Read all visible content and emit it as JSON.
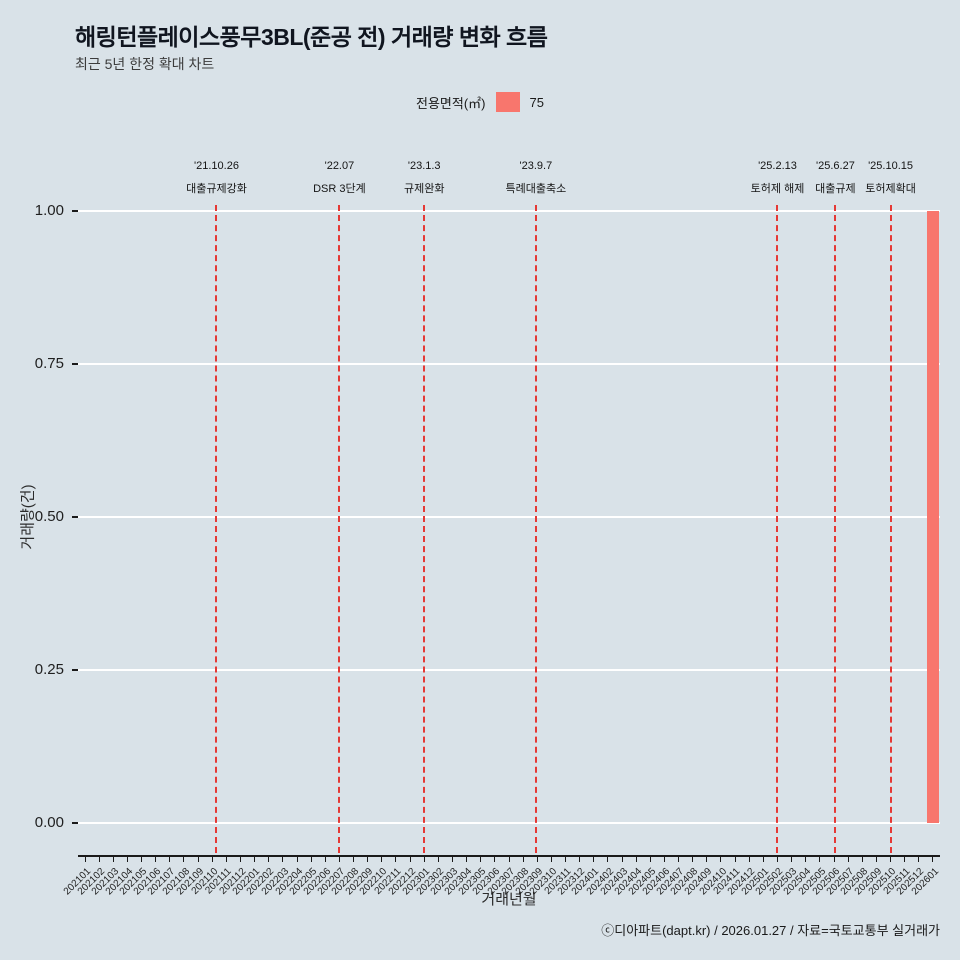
{
  "header": {
    "title": "해링턴플레이스풍무3BL(준공 전) 거래량 변화 흐름",
    "subtitle": "최근 5년 한정 확대 차트"
  },
  "legend": {
    "title": "전용면적(㎡)",
    "value": "75",
    "swatch_color": "#f8766d"
  },
  "footer": {
    "credit": "ⓒ디아파트(dapt.kr) / 2026.01.27 / 자료=국토교통부 실거래가"
  },
  "chart_data": {
    "type": "bar",
    "title": "해링턴플레이스풍무3BL(준공 전) 거래량 변화 흐름",
    "xlabel": "거래년월",
    "ylabel": "거래량(건)",
    "ylim": [
      0,
      1
    ],
    "grid": true,
    "legend_position": "top",
    "yticks": [
      {
        "value": 0.0,
        "label": "0.00"
      },
      {
        "value": 0.25,
        "label": "0.25"
      },
      {
        "value": 0.5,
        "label": "0.50"
      },
      {
        "value": 0.75,
        "label": "0.75"
      },
      {
        "value": 1.0,
        "label": "1.00"
      }
    ],
    "categories": [
      "202101",
      "202102",
      "202103",
      "202104",
      "202105",
      "202106",
      "202107",
      "202108",
      "202109",
      "202110",
      "202111",
      "202112",
      "202201",
      "202202",
      "202203",
      "202204",
      "202205",
      "202206",
      "202207",
      "202208",
      "202209",
      "202210",
      "202211",
      "202212",
      "202301",
      "202302",
      "202303",
      "202304",
      "202305",
      "202306",
      "202307",
      "202308",
      "202309",
      "202310",
      "202311",
      "202312",
      "202401",
      "202402",
      "202403",
      "202404",
      "202405",
      "202406",
      "202407",
      "202408",
      "202409",
      "202410",
      "202411",
      "202412",
      "202501",
      "202502",
      "202503",
      "202504",
      "202505",
      "202506",
      "202507",
      "202508",
      "202509",
      "202510",
      "202511",
      "202512",
      "202601"
    ],
    "series": [
      {
        "name": "75",
        "color": "#f8766d",
        "values": [
          0,
          0,
          0,
          0,
          0,
          0,
          0,
          0,
          0,
          0,
          0,
          0,
          0,
          0,
          0,
          0,
          0,
          0,
          0,
          0,
          0,
          0,
          0,
          0,
          0,
          0,
          0,
          0,
          0,
          0,
          0,
          0,
          0,
          0,
          0,
          0,
          0,
          0,
          0,
          0,
          0,
          0,
          0,
          0,
          0,
          0,
          0,
          0,
          0,
          0,
          0,
          0,
          0,
          0,
          0,
          0,
          0,
          0,
          0,
          0,
          1
        ]
      }
    ],
    "events": [
      {
        "date": "'21.10.26",
        "label": "대출규제강화",
        "pos": 9.8
      },
      {
        "date": "'22.07",
        "label": "DSR 3단계",
        "pos": 18.5
      },
      {
        "date": "'23.1.3",
        "label": "규제완화",
        "pos": 24.5
      },
      {
        "date": "'23.9.7",
        "label": "특례대출축소",
        "pos": 32.4
      },
      {
        "date": "'25.2.13",
        "label": "토허제 해제",
        "pos": 49.5
      },
      {
        "date": "'25.6.27",
        "label": "대출규제",
        "pos": 53.6
      },
      {
        "date": "'25.10.15",
        "label": "토허제확대",
        "pos": 57.5
      }
    ],
    "event_line_color": "#e53935",
    "colors": {
      "background": "#d9e2e8",
      "grid": "#ffffff",
      "axis": "#1a1a1a",
      "bar": "#f8766d"
    }
  }
}
